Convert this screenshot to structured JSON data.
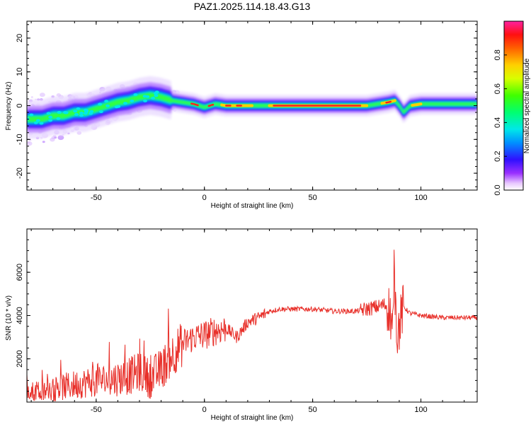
{
  "title": "PAZ1.2025.114.18.43.G13",
  "chart_data": [
    {
      "type": "heatmap",
      "xlabel": "Height of straight line (km)",
      "ylabel": "Frequency (Hz)",
      "xlim": [
        -82,
        126
      ],
      "ylim": [
        -25,
        25
      ],
      "xticks": [
        -50,
        0,
        50,
        100
      ],
      "yticks": [
        -20,
        -10,
        0,
        10,
        20
      ],
      "colorbar": {
        "label": "Normalized spectral amplitude",
        "range": [
          0,
          1
        ],
        "ticks": [
          "0.0",
          "0.2",
          "0.4",
          "0.6",
          "0.8"
        ]
      },
      "ridge": {
        "x": [
          -82,
          -75,
          -70,
          -65,
          -60,
          -55,
          -50,
          -45,
          -40,
          -35,
          -30,
          -25,
          -20,
          -15,
          -10,
          -5,
          0,
          5,
          10,
          20,
          30,
          40,
          50,
          60,
          70,
          75,
          80,
          85,
          88,
          90,
          92,
          95,
          100,
          110,
          120,
          126
        ],
        "y": [
          -4,
          -4,
          -3,
          -3,
          -2,
          -2,
          -1,
          0,
          1,
          1.5,
          2.5,
          3,
          2.5,
          1.5,
          1,
          0.5,
          -0.5,
          0.5,
          0,
          0,
          0,
          0,
          0,
          0,
          0,
          0,
          0.5,
          1,
          1.5,
          0,
          -2,
          0,
          0.5,
          0.5,
          0.5,
          0.5
        ]
      }
    },
    {
      "type": "line",
      "xlabel": "Height of straight line (km)",
      "ylabel": "SNR (10 * v/v)",
      "xlim": [
        -82,
        126
      ],
      "ylim": [
        0,
        8000
      ],
      "xticks": [
        -50,
        0,
        50,
        100
      ],
      "yticks": [
        2000,
        4000,
        6000
      ],
      "series": [
        {
          "color": "#e8302a",
          "x": [
            -82,
            -75,
            -70,
            -65,
            -60,
            -55,
            -50,
            -45,
            -40,
            -35,
            -30,
            -25,
            -20,
            -15,
            -10,
            -5,
            0,
            5,
            10,
            15,
            20,
            25,
            30,
            35,
            40,
            50,
            60,
            70,
            75,
            80,
            83,
            85,
            87,
            88,
            89,
            90,
            91,
            92,
            95,
            100,
            110,
            120,
            126
          ],
          "y": [
            400,
            500,
            600,
            700,
            800,
            900,
            1000,
            1000,
            1100,
            1200,
            1400,
            1100,
            1500,
            2200,
            2700,
            3000,
            3100,
            3300,
            3400,
            3000,
            3700,
            3900,
            4200,
            4300,
            4300,
            4300,
            4200,
            4200,
            4300,
            4400,
            4500,
            4400,
            3500,
            4600,
            3200,
            3500,
            4000,
            4400,
            4100,
            4000,
            3900,
            3900,
            3900
          ]
        }
      ]
    }
  ],
  "colors": {
    "line": "#e8302a",
    "frame": "#000000",
    "background": "#ffffff"
  }
}
